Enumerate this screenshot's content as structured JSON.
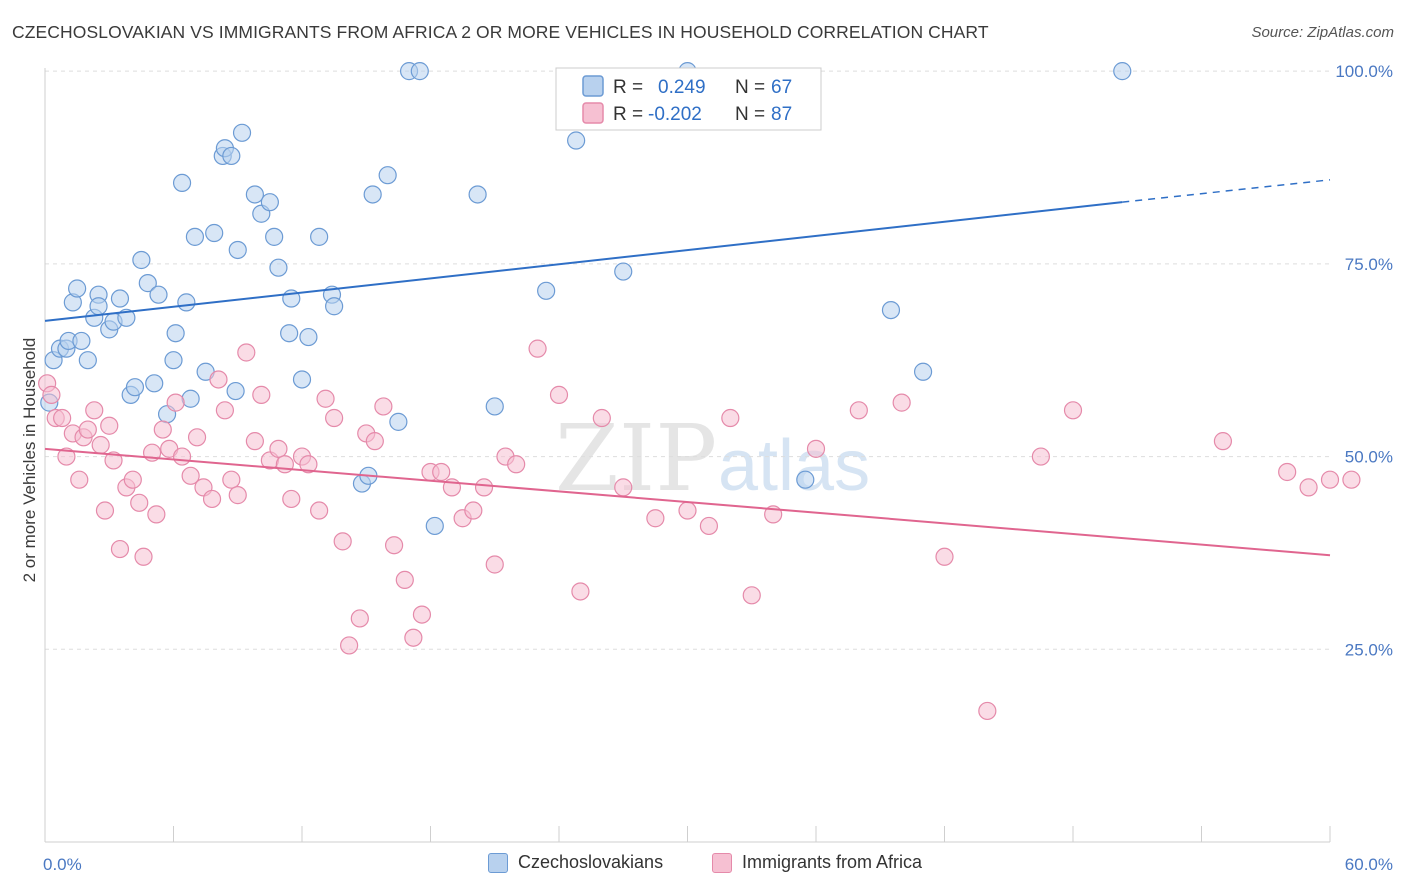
{
  "title": "CZECHOSLOVAKIAN VS IMMIGRANTS FROM AFRICA 2 OR MORE VEHICLES IN HOUSEHOLD CORRELATION CHART",
  "source": "Source: ZipAtlas.com",
  "watermark": {
    "zip": "ZIP",
    "atlas": "atlas"
  },
  "colors": {
    "blue_fill": "#b8d1ee",
    "blue_stroke": "#6c9bd4",
    "blue_line": "#2f6fc6",
    "pink_fill": "#f6c0d2",
    "pink_stroke": "#e58aaa",
    "pink_line": "#e0658f",
    "tick_text": "#4a78c2",
    "grid": "#dddddd"
  },
  "stats": [
    {
      "r_label": "R =",
      "r_value": "0.249",
      "n_label": "N =",
      "n_value": "67"
    },
    {
      "r_label": "R =",
      "r_value": "-0.202",
      "n_label": "N =",
      "n_value": "87"
    }
  ],
  "chart_data": {
    "type": "scatter",
    "title": "CZECHOSLOVAKIAN VS IMMIGRANTS FROM AFRICA 2 OR MORE VEHICLES IN HOUSEHOLD CORRELATION CHART",
    "xlabel": "",
    "ylabel": "2 or more Vehicles in Household",
    "xlim": [
      0,
      60
    ],
    "ylim": [
      0,
      103
    ],
    "x_tick_labels": [
      "0.0%",
      "60.0%"
    ],
    "y_ticks": [
      25,
      50,
      75,
      100
    ],
    "y_tick_labels": [
      "25.0%",
      "50.0%",
      "75.0%",
      "100.0%"
    ],
    "grid": true,
    "legend_position": "bottom",
    "series": [
      {
        "name": "Czechoslovakians",
        "trend": {
          "x": [
            0,
            50.3,
            60
          ],
          "y": [
            67.6,
            83.0,
            85.9
          ]
        },
        "x": [
          0.2,
          0.4,
          0.7,
          1.0,
          1.1,
          1.3,
          1.5,
          1.7,
          2.0,
          2.3,
          2.5,
          2.5,
          3.0,
          3.2,
          3.5,
          3.8,
          4.0,
          4.2,
          4.5,
          4.8,
          5.1,
          5.3,
          5.7,
          6.0,
          6.1,
          6.4,
          6.6,
          6.8,
          7.0,
          7.5,
          7.9,
          8.3,
          8.4,
          8.7,
          8.9,
          9.0,
          9.2,
          9.8,
          10.1,
          10.5,
          10.7,
          10.9,
          11.4,
          11.5,
          12.0,
          12.3,
          12.8,
          13.4,
          13.5,
          14.8,
          15.1,
          15.3,
          16.0,
          16.5,
          17.0,
          17.5,
          18.2,
          20.2,
          21.0,
          23.4,
          24.8,
          27.0,
          30.0,
          35.5,
          39.5,
          41.0,
          50.3
        ],
        "y": [
          57,
          62.5,
          64,
          64,
          65,
          70,
          71.8,
          65,
          62.5,
          68,
          71,
          69.5,
          66.5,
          67.5,
          70.5,
          68,
          58,
          59,
          75.5,
          72.5,
          59.5,
          71,
          55.5,
          62.5,
          66,
          85.5,
          70,
          57.5,
          78.5,
          61,
          79,
          89,
          90,
          89,
          58.5,
          76.8,
          92,
          84,
          81.5,
          83,
          78.5,
          74.5,
          66,
          70.5,
          60,
          65.5,
          78.5,
          71,
          69.5,
          46.5,
          47.5,
          84,
          86.5,
          54.5,
          100,
          100,
          41,
          84,
          56.5,
          71.5,
          91,
          74,
          100,
          47,
          69,
          61,
          100
        ]
      },
      {
        "name": "Immigrants from Africa",
        "trend": {
          "x": [
            0,
            60
          ],
          "y": [
            51.0,
            37.2
          ]
        },
        "x": [
          0.1,
          0.3,
          0.5,
          0.8,
          1.0,
          1.3,
          1.6,
          1.8,
          2.0,
          2.3,
          2.6,
          2.8,
          3.0,
          3.2,
          3.5,
          3.8,
          4.1,
          4.4,
          4.6,
          5.0,
          5.2,
          5.5,
          5.8,
          6.1,
          6.4,
          6.8,
          7.1,
          7.4,
          7.8,
          8.1,
          8.4,
          8.7,
          9.0,
          9.4,
          9.8,
          10.1,
          10.5,
          10.9,
          11.2,
          11.5,
          12.0,
          12.3,
          12.8,
          13.1,
          13.5,
          13.9,
          14.2,
          14.7,
          15.0,
          15.4,
          15.8,
          16.3,
          16.8,
          17.2,
          17.6,
          18.0,
          18.5,
          19.0,
          19.5,
          20.0,
          20.5,
          21.0,
          21.5,
          22.0,
          23.0,
          24.0,
          25.0,
          26.0,
          27.0,
          28.5,
          30.0,
          31.0,
          32.0,
          33.0,
          34.0,
          36.0,
          38.0,
          40.0,
          42.0,
          44.0,
          46.5,
          48.0,
          55.0,
          58.0,
          59.0,
          60.0,
          61.0
        ],
        "y": [
          59.5,
          58,
          55,
          55,
          50,
          53,
          47,
          52.5,
          53.5,
          56,
          51.5,
          43,
          54,
          49.5,
          38,
          46,
          47,
          44,
          37,
          50.5,
          42.5,
          53.5,
          51,
          57,
          50,
          47.5,
          52.5,
          46,
          44.5,
          60,
          56,
          47,
          45,
          63.5,
          52,
          58,
          49.5,
          51,
          49,
          44.5,
          50,
          49,
          43,
          57.5,
          55,
          39,
          25.5,
          29,
          53,
          52,
          56.5,
          38.5,
          34,
          26.5,
          29.5,
          48,
          48,
          46,
          42,
          43,
          46,
          36,
          50,
          49,
          64,
          58,
          32.5,
          55,
          46,
          42,
          43,
          41,
          55,
          32,
          42.5,
          51,
          56,
          57,
          37,
          17,
          50,
          56,
          52,
          48,
          46,
          47,
          47
        ]
      }
    ]
  }
}
